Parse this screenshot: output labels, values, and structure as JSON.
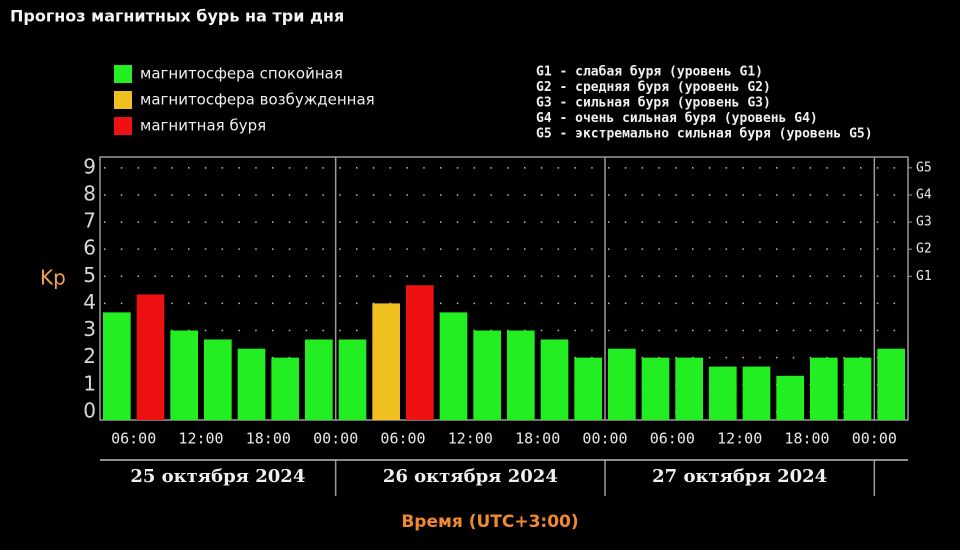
{
  "chart_data": {
    "type": "bar",
    "title": "Прогноз магнитных бурь на три дня",
    "y_label": "Kp",
    "x_label": "Время (UTC+3:00)",
    "values": [
      3.67,
      4.33,
      3,
      2.67,
      2.33,
      2,
      2.67,
      2.67,
      4,
      4.67,
      3.67,
      3,
      3,
      2.67,
      2,
      2.33,
      2,
      2,
      1.67,
      1.67,
      1.33,
      2,
      2,
      2.33
    ],
    "bar_colors": [
      "#22ee22",
      "#ee1111",
      "#22ee22",
      "#22ee22",
      "#22ee22",
      "#22ee22",
      "#22ee22",
      "#22ee22",
      "#f0c020",
      "#ee1111",
      "#22ee22",
      "#22ee22",
      "#22ee22",
      "#22ee22",
      "#22ee22",
      "#22ee22",
      "#22ee22",
      "#22ee22",
      "#22ee22",
      "#22ee22",
      "#22ee22",
      "#22ee22",
      "#22ee22",
      "#22ee22"
    ],
    "series": [
      {
        "name": "магнитосфера спокойная",
        "color": "#22ee22"
      },
      {
        "name": "магнитосфера возбужденная",
        "color": "#f0c020"
      },
      {
        "name": "магнитная буря",
        "color": "#ee1111"
      }
    ],
    "time_labels": [
      "06:00",
      "12:00",
      "18:00",
      "00:00",
      "06:00",
      "12:00",
      "18:00",
      "00:00",
      "06:00",
      "12:00",
      "18:00",
      "00:00"
    ],
    "days": [
      "25 октября 2024",
      "26 октября 2024",
      "27 октября 2024"
    ],
    "notes": [
      "G1 - слабая буря (уровень G1)",
      "G2 - средняя буря (уровень G2)",
      "G3 - сильная буря (уровень G3)",
      "G4 - очень сильная буря (уровень G4)",
      "G5 - экстремально сильная буря (уровень G5)"
    ],
    "ylim": [
      -0.3,
      9.4
    ],
    "yticks": [
      0,
      1,
      2,
      3,
      4,
      5,
      6,
      7,
      8,
      9
    ],
    "y2lim": [
      -0.3,
      9.4
    ],
    "y2ticks": [
      {
        "value": 5,
        "label": "G1"
      },
      {
        "value": 6,
        "label": "G2"
      },
      {
        "value": 7,
        "label": "G3"
      },
      {
        "value": 8,
        "label": "G4"
      },
      {
        "value": 9,
        "label": "G5"
      }
    ],
    "grid": true
  }
}
